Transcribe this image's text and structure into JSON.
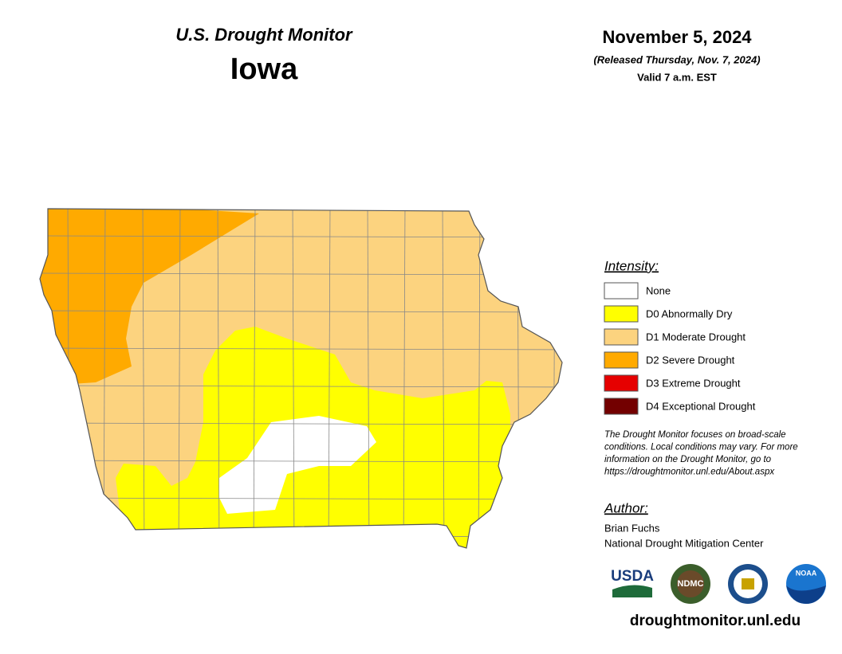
{
  "header": {
    "title": "U.S. Drought Monitor",
    "state": "Iowa"
  },
  "date": {
    "date": "November 5, 2024",
    "released": "(Released Thursday, Nov. 7, 2024)",
    "valid": "Valid 7 a.m. EST"
  },
  "legend": {
    "title": "Intensity:",
    "items": [
      {
        "label": "None",
        "color": "#ffffff"
      },
      {
        "label": "D0 Abnormally Dry",
        "color": "#ffff00"
      },
      {
        "label": "D1 Moderate Drought",
        "color": "#fcd37f"
      },
      {
        "label": "D2 Severe Drought",
        "color": "#ffaa00"
      },
      {
        "label": "D3 Extreme Drought",
        "color": "#e60000"
      },
      {
        "label": "D4 Exceptional Drought",
        "color": "#730000"
      }
    ]
  },
  "note": [
    "The Drought Monitor focuses on broad-scale",
    "conditions. Local conditions may vary. For more",
    "information on the Drought Monitor, go to",
    "https://droughtmonitor.unl.edu/About.aspx"
  ],
  "author": {
    "title": "Author:",
    "lines": [
      "Brian Fuchs",
      "National Drought Mitigation Center"
    ]
  },
  "logos": [
    "USDA",
    "NDMC",
    "NOAA"
  ],
  "website": "droughtmonitor.unl.edu"
}
